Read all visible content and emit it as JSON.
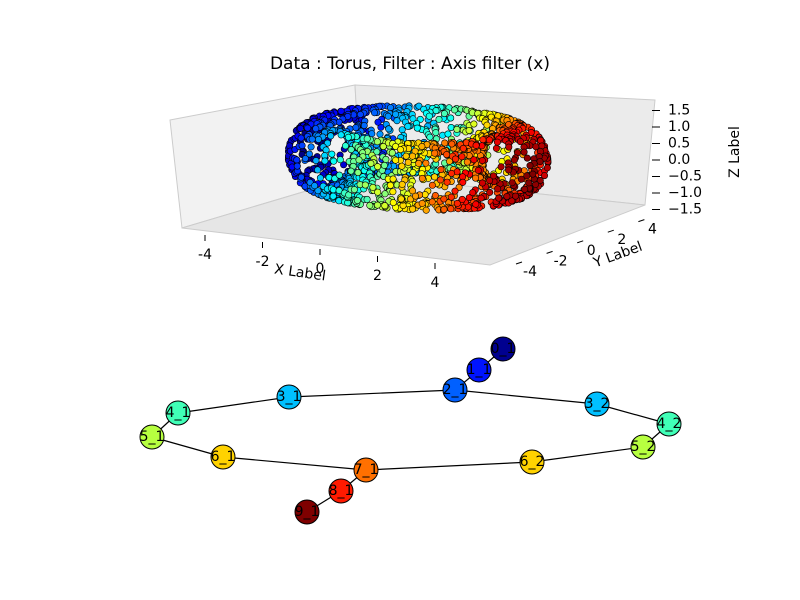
{
  "title": "Data : Torus, Filter : Axis filter (x)",
  "axes3d": {
    "xlabel": "X Label",
    "ylabel": "Y Label",
    "zlabel": "Z Label",
    "xticks": [
      -4,
      -2,
      0,
      2,
      4
    ],
    "yticks": [
      -4,
      -2,
      0,
      2,
      4
    ],
    "zticks": [
      1.5,
      {
        "value": 1.0,
        "label": "1.0"
      },
      0.5,
      {
        "value": 0.0,
        "label": "0.0"
      },
      {
        "value": -0.5,
        "label": "−0.5"
      },
      {
        "value": -1.0,
        "label": "−1.0"
      },
      {
        "value": -1.5,
        "label": "−1.5"
      }
    ]
  },
  "graph": {
    "nodes": [
      {
        "label": "0_1",
        "color": "#00008f"
      },
      {
        "label": "1_1",
        "color": "#0014ff"
      },
      {
        "label": "2_1",
        "color": "#0060ff"
      },
      {
        "label": "3_1",
        "color": "#00c0ff"
      },
      {
        "label": "4_1",
        "color": "#40ffb7"
      },
      {
        "label": "5_1",
        "color": "#b7ff40"
      },
      {
        "label": "6_1",
        "color": "#ffd200"
      },
      {
        "label": "7_1",
        "color": "#ff7000"
      },
      {
        "label": "8_1",
        "color": "#ff1a00"
      },
      {
        "label": "9_1",
        "color": "#7f0000"
      },
      {
        "label": "3_2",
        "color": "#00c0ff"
      },
      {
        "label": "4_2",
        "color": "#40ffb7"
      },
      {
        "label": "5_2",
        "color": "#b7ff40"
      },
      {
        "label": "6_2",
        "color": "#ffd200"
      }
    ]
  }
}
